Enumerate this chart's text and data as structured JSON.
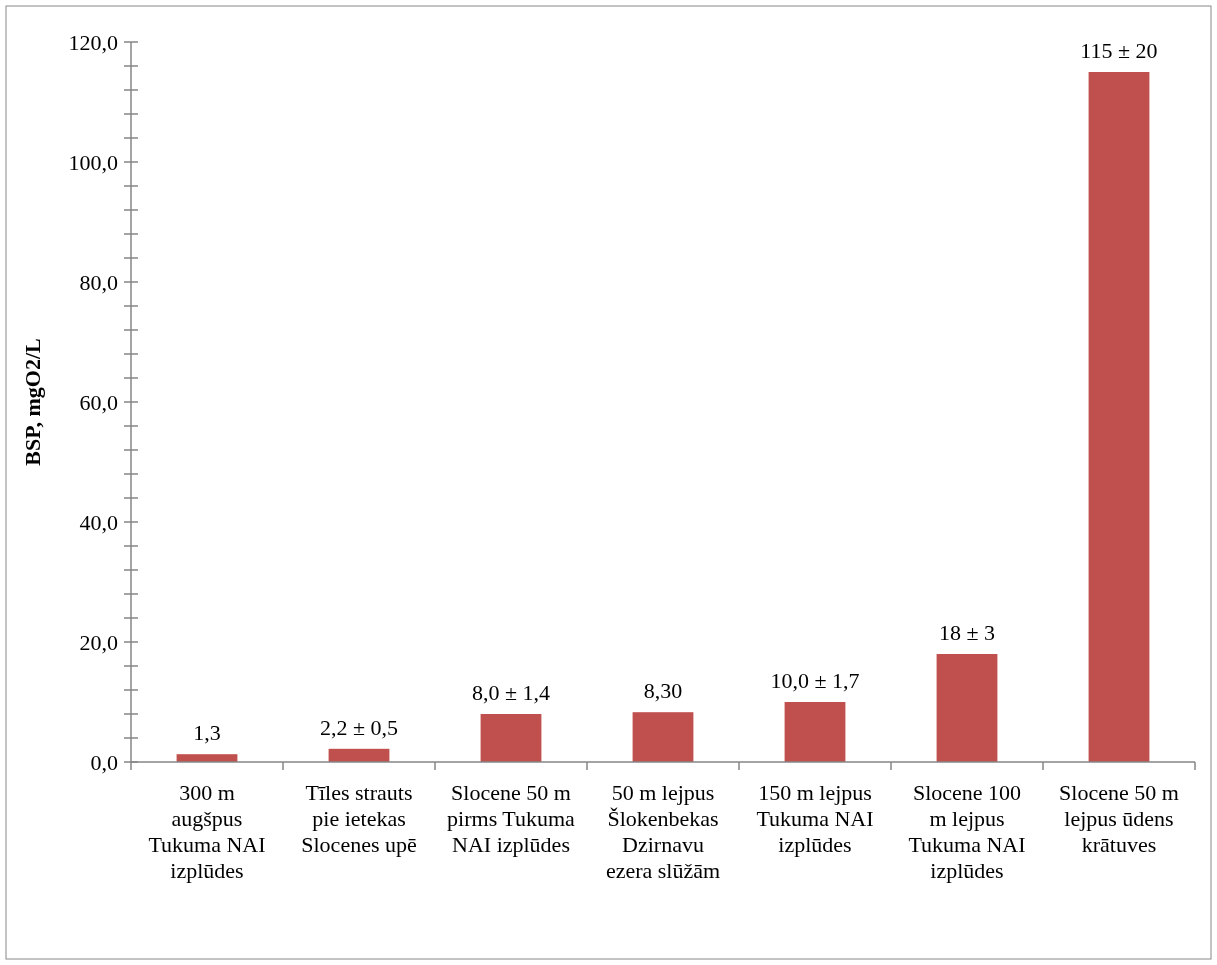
{
  "chart_data": {
    "type": "bar",
    "ylabel": "BSP, mgO2/L",
    "categories": [
      "300 m augšpus Tukuma NAI izplūdes",
      "Tīles strauts pie ietekas Slocenes upē",
      "Slocene 50 m pirms Tukuma NAI izplūdes",
      "50 m lejpus Šlokenbekas Dzirnavu ezera slūžām",
      "150 m lejpus Tukuma NAI izplūdes",
      "Slocene 100 m lejpus Tukuma NAI izplūdes",
      "Slocene 50 m lejpus ūdens krātuves"
    ],
    "values": [
      1.3,
      2.2,
      8.0,
      8.3,
      10.0,
      18,
      115
    ],
    "value_labels": [
      "1,3",
      "2,2 ± 0,5",
      "8,0 ± 1,4",
      "8,30",
      "10,0 ± 1,7",
      "18 ± 3",
      "115 ± 20"
    ],
    "color": "#c0504d",
    "ylim": [
      0,
      120
    ],
    "yticks": [
      {
        "value": 0,
        "label": "0,0"
      },
      {
        "value": 4,
        "label": null
      },
      {
        "value": 8,
        "label": null
      },
      {
        "value": 12,
        "label": null
      },
      {
        "value": 16,
        "label": null
      },
      {
        "value": 20,
        "label": "20,0"
      },
      {
        "value": 24,
        "label": null
      },
      {
        "value": 28,
        "label": null
      },
      {
        "value": 32,
        "label": null
      },
      {
        "value": 36,
        "label": null
      },
      {
        "value": 40,
        "label": "40,0"
      },
      {
        "value": 44,
        "label": null
      },
      {
        "value": 48,
        "label": null
      },
      {
        "value": 52,
        "label": null
      },
      {
        "value": 56,
        "label": null
      },
      {
        "value": 60,
        "label": "60,0"
      },
      {
        "value": 64,
        "label": null
      },
      {
        "value": 68,
        "label": null
      },
      {
        "value": 72,
        "label": null
      },
      {
        "value": 76,
        "label": null
      },
      {
        "value": 80,
        "label": "80,0"
      },
      {
        "value": 84,
        "label": null
      },
      {
        "value": 88,
        "label": null
      },
      {
        "value": 92,
        "label": null
      },
      {
        "value": 96,
        "label": null
      },
      {
        "value": 100,
        "label": "100,0"
      },
      {
        "value": 104,
        "label": null
      },
      {
        "value": 108,
        "label": null
      },
      {
        "value": 112,
        "label": null
      },
      {
        "value": 116,
        "label": null
      },
      {
        "value": 120,
        "label": "120,0"
      }
    ],
    "grid": false
  }
}
